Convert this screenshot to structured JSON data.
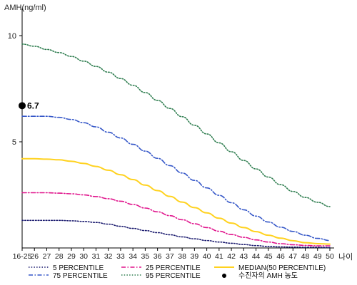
{
  "chart_data": {
    "type": "line",
    "ylabel": "AMH(ng/ml)",
    "xlabel": "나이",
    "ylim": [
      0,
      11
    ],
    "yticks": [
      "5",
      "10"
    ],
    "categories": [
      "16-25",
      "26",
      "27",
      "28",
      "29",
      "30",
      "31",
      "32",
      "33",
      "34",
      "35",
      "36",
      "37",
      "38",
      "39",
      "40",
      "41",
      "42",
      "43",
      "44",
      "45",
      "46",
      "47",
      "48",
      "49",
      "50"
    ],
    "series": [
      {
        "name": "5 PERCENTILE",
        "color": "#1a1a6e",
        "dash": "dotted",
        "values": [
          1.3,
          1.3,
          1.3,
          1.3,
          1.28,
          1.25,
          1.2,
          1.12,
          1.02,
          0.92,
          0.82,
          0.72,
          0.62,
          0.52,
          0.43,
          0.35,
          0.28,
          0.22,
          0.16,
          0.11,
          0.07,
          0.05,
          0.04,
          0.03,
          0.03,
          0.02
        ]
      },
      {
        "name": "25 PERCENTILE",
        "color": "#e0148c",
        "dash": "dashdot",
        "values": [
          2.6,
          2.6,
          2.6,
          2.58,
          2.55,
          2.5,
          2.42,
          2.32,
          2.2,
          2.05,
          1.88,
          1.7,
          1.52,
          1.33,
          1.14,
          0.96,
          0.79,
          0.63,
          0.5,
          0.38,
          0.28,
          0.2,
          0.15,
          0.12,
          0.1,
          0.1
        ]
      },
      {
        "name": "MEDIAN(50 PERCENTILE)",
        "color": "#ffd21f",
        "dash": "solid",
        "values": [
          4.2,
          4.2,
          4.18,
          4.15,
          4.08,
          3.98,
          3.84,
          3.66,
          3.45,
          3.22,
          2.96,
          2.7,
          2.43,
          2.16,
          1.9,
          1.65,
          1.4,
          1.17,
          0.96,
          0.77,
          0.6,
          0.46,
          0.34,
          0.25,
          0.2,
          0.18
        ]
      },
      {
        "name": "75 PERCENTILE",
        "color": "#3557c8",
        "dash": "dashdot",
        "values": [
          6.2,
          6.2,
          6.2,
          6.15,
          6.05,
          5.9,
          5.7,
          5.45,
          5.18,
          4.88,
          4.56,
          4.22,
          3.88,
          3.53,
          3.18,
          2.83,
          2.48,
          2.13,
          1.8,
          1.5,
          1.22,
          0.98,
          0.78,
          0.6,
          0.45,
          0.35
        ]
      },
      {
        "name": "95 PERCENTILE",
        "color": "#2e7d4f",
        "dash": "dotted",
        "values": [
          9.6,
          9.5,
          9.35,
          9.2,
          9.02,
          8.8,
          8.55,
          8.28,
          7.98,
          7.66,
          7.32,
          6.95,
          6.57,
          6.18,
          5.78,
          5.37,
          4.95,
          4.53,
          4.12,
          3.72,
          3.34,
          2.98,
          2.66,
          2.38,
          2.15,
          1.95
        ]
      }
    ],
    "marker": {
      "label": "수진자의 AMH 농도",
      "value": 6.7,
      "value_text": "6.7",
      "category_index": 0,
      "color": "#000000"
    },
    "grid": false,
    "legend_position": "bottom"
  }
}
